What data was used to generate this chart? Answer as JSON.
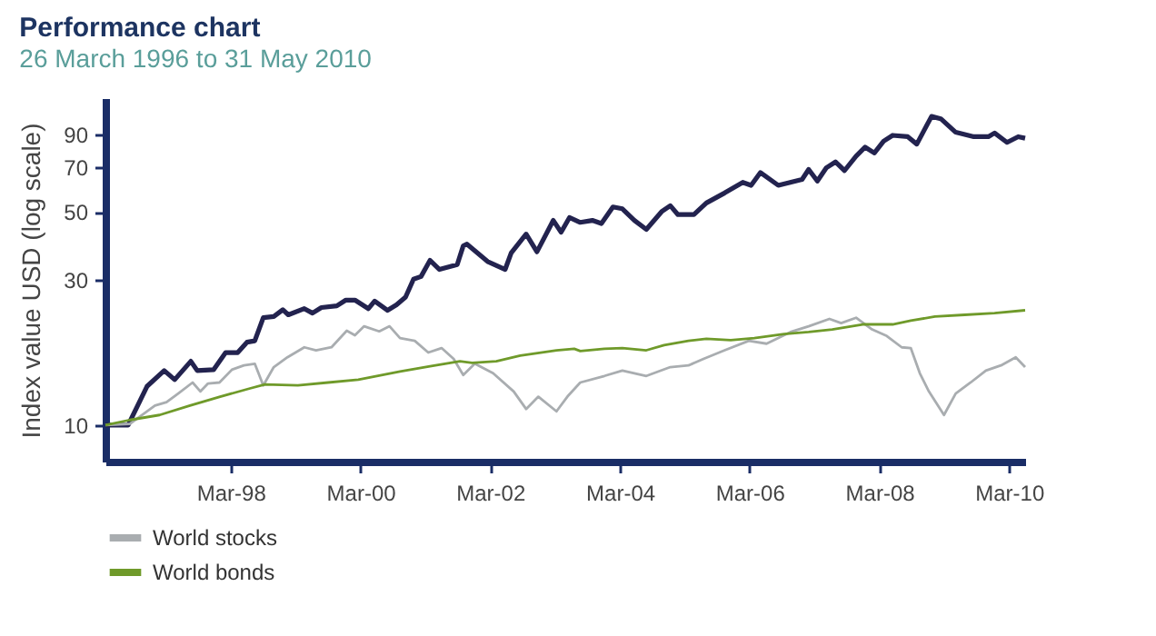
{
  "chart_data": {
    "type": "line",
    "title": "Performance chart",
    "subtitle": "26 March 1996 to 31 May 2010",
    "ylabel": "Index value USD (log scale)",
    "log": true,
    "grid": false,
    "legend": "bottom left",
    "marker": "none",
    "line_style": "solid",
    "xlim": [
      "1996-03-26",
      "2010-05-31"
    ],
    "xticks": [
      {
        "value": "1998-03-01",
        "label": "Mar-98"
      },
      {
        "value": "2000-03-01",
        "label": "Mar-00"
      },
      {
        "value": "2002-03-01",
        "label": "Mar-02"
      },
      {
        "value": "2004-03-01",
        "label": "Mar-04"
      },
      {
        "value": "2006-03-01",
        "label": "Mar-06"
      },
      {
        "value": "2008-03-01",
        "label": "Mar-08"
      },
      {
        "value": "2010-03-01",
        "label": "Mar-10"
      }
    ],
    "ylim": [
      7.6,
      118
    ],
    "yticks": [
      10,
      30,
      50,
      70,
      90
    ],
    "series": [
      {
        "color": "#23234f",
        "x": [
          "1996-03-26",
          "1996-08-01",
          "1996-11-15",
          "1997-02-20",
          "1997-04-20",
          "1997-07-20",
          "1997-08-25",
          "1997-11-25",
          "1998-02-01",
          "1998-04-10",
          "1998-06-01",
          "1998-07-15",
          "1998-09-01",
          "1998-10-30",
          "1998-12-20",
          "1999-01-20",
          "1999-04-20",
          "1999-06-05",
          "1999-07-25",
          "1999-10-20",
          "1999-12-10",
          "2000-01-30",
          "2000-04-15",
          "2000-05-20",
          "2000-08-01",
          "2000-09-20",
          "2000-11-10",
          "2000-12-25",
          "2001-02-05",
          "2001-03-28",
          "2001-05-20",
          "2001-08-28",
          "2001-10-01",
          "2001-10-22",
          "2002-02-15",
          "2002-05-25",
          "2002-06-28",
          "2002-09-20",
          "2002-11-20",
          "2003-02-20",
          "2003-04-05",
          "2003-05-22",
          "2003-07-22",
          "2003-09-28",
          "2003-11-18",
          "2004-01-22",
          "2004-03-15",
          "2004-05-22",
          "2004-07-28",
          "2004-10-22",
          "2004-12-10",
          "2005-01-22",
          "2005-04-22",
          "2005-07-01",
          "2005-10-12",
          "2006-01-22",
          "2006-03-10",
          "2006-05-01",
          "2006-08-10",
          "2006-12-22",
          "2007-01-28",
          "2007-03-18",
          "2007-05-08",
          "2007-06-28",
          "2007-08-18",
          "2007-10-22",
          "2007-12-12",
          "2008-02-02",
          "2008-03-25",
          "2008-05-15",
          "2008-08-08",
          "2008-09-28",
          "2008-12-20",
          "2009-02-10",
          "2009-05-05",
          "2009-08-15",
          "2009-11-05",
          "2009-12-10",
          "2010-02-18",
          "2010-04-22",
          "2010-05-31"
        ],
        "values": [
          10,
          10,
          13.4,
          15.1,
          14.1,
          16.2,
          15.1,
          15.2,
          17.3,
          17.3,
          18.7,
          18.9,
          22.5,
          22.7,
          23.9,
          23,
          24.1,
          23.3,
          24.3,
          24.6,
          25.7,
          25.7,
          24.1,
          25.5,
          23.8,
          24.8,
          26.3,
          30.1,
          30.7,
          34.7,
          32.4,
          33.6,
          38.7,
          39.2,
          34.4,
          32.4,
          36.7,
          42.3,
          37,
          46.9,
          42.9,
          47.9,
          46.2,
          46.9,
          45.8,
          51.9,
          51.2,
          46.9,
          43.8,
          50.1,
          52.4,
          49,
          49,
          53.5,
          57.7,
          62.5,
          61.1,
          67.3,
          61.1,
          63.9,
          68.9,
          63.1,
          69.8,
          72.9,
          68.3,
          76.2,
          81.5,
          78,
          85.3,
          89.1,
          88.2,
          83.4,
          102.8,
          101,
          91.2,
          88.2,
          88.2,
          90.7,
          84.5,
          88.2,
          87.2
        ]
      },
      {
        "name": "World stocks",
        "color": "#a9adb0",
        "x": [
          "1996-03-26",
          "1996-08-10",
          "1996-12-30",
          "1997-03-05",
          "1997-05-10",
          "1997-07-30",
          "1997-09-12",
          "1997-10-25",
          "1997-12-28",
          "1998-03-08",
          "1998-05-15",
          "1998-07-15",
          "1998-09-01",
          "1998-10-30",
          "1999-01-15",
          "1999-04-20",
          "1999-06-25",
          "1999-09-20",
          "1999-12-15",
          "2000-01-30",
          "2000-03-22",
          "2000-06-15",
          "2000-08-12",
          "2000-10-10",
          "2001-01-01",
          "2001-03-18",
          "2001-06-01",
          "2001-08-08",
          "2001-10-01",
          "2001-12-05",
          "2002-03-18",
          "2002-07-12",
          "2002-09-20",
          "2002-11-28",
          "2003-03-10",
          "2003-05-15",
          "2003-07-22",
          "2003-12-05",
          "2004-03-15",
          "2004-07-28",
          "2004-12-10",
          "2005-03-22",
          "2005-06-15",
          "2005-10-12",
          "2006-02-25",
          "2006-06-05",
          "2006-10-18",
          "2007-01-28",
          "2007-05-25",
          "2007-07-30",
          "2007-10-22",
          "2008-01-20",
          "2008-04-12",
          "2008-07-05",
          "2008-08-25",
          "2008-10-15",
          "2008-12-05",
          "2009-02-28",
          "2009-05-05",
          "2009-07-28",
          "2009-10-22",
          "2010-01-15",
          "2010-04-08",
          "2010-05-31"
        ],
        "values": [
          10,
          10.1,
          11.6,
          11.9,
          12.7,
          13.8,
          12.9,
          13.7,
          13.8,
          15.2,
          15.7,
          15.9,
          13.5,
          15.5,
          16.7,
          18,
          17.6,
          18,
          20.4,
          19.7,
          21.1,
          20.3,
          21.1,
          19.3,
          18.9,
          17.3,
          17.9,
          16.5,
          14.6,
          15.9,
          14.8,
          12.9,
          11.3,
          12.4,
          11.1,
          12.5,
          13.8,
          14.5,
          15.1,
          14.5,
          15.5,
          15.7,
          16.5,
          17.6,
          18.9,
          18.5,
          20.2,
          21.1,
          22.3,
          21.6,
          22.5,
          20.6,
          19.6,
          18,
          17.9,
          14.8,
          12.9,
          10.8,
          12.7,
          13.8,
          15.1,
          15.7,
          16.7,
          15.5
        ]
      },
      {
        "name": "World bonds",
        "color": "#6f9a2a",
        "x": [
          "1996-03-26",
          "1996-08-10",
          "1997-01-25",
          "1997-07-15",
          "1998-01-01",
          "1998-06-18",
          "1998-09-10",
          "1999-03-15",
          "1999-09-01",
          "2000-02-18",
          "2000-10-10",
          "2001-03-28",
          "2001-09-12",
          "2001-11-20",
          "2002-04-05",
          "2002-08-18",
          "2003-03-10",
          "2003-06-18",
          "2003-07-22",
          "2003-12-05",
          "2004-03-15",
          "2004-07-28",
          "2004-11-05",
          "2005-03-22",
          "2005-07-01",
          "2005-11-15",
          "2006-03-28",
          "2006-09-12",
          "2007-01-28",
          "2007-06-10",
          "2007-11-28",
          "2008-05-15",
          "2008-08-25",
          "2009-01-08",
          "2009-06-25",
          "2009-12-10",
          "2010-05-31"
        ],
        "values": [
          10,
          10.4,
          10.8,
          11.6,
          12.4,
          13.2,
          13.6,
          13.5,
          13.8,
          14.1,
          15,
          15.6,
          16.2,
          16,
          16.2,
          16.9,
          17.6,
          17.8,
          17.5,
          17.8,
          17.9,
          17.6,
          18.3,
          18.9,
          19.2,
          19,
          19.3,
          19.9,
          20.2,
          20.6,
          21.4,
          21.4,
          22,
          22.7,
          23,
          23.3,
          23.8
        ]
      }
    ]
  }
}
